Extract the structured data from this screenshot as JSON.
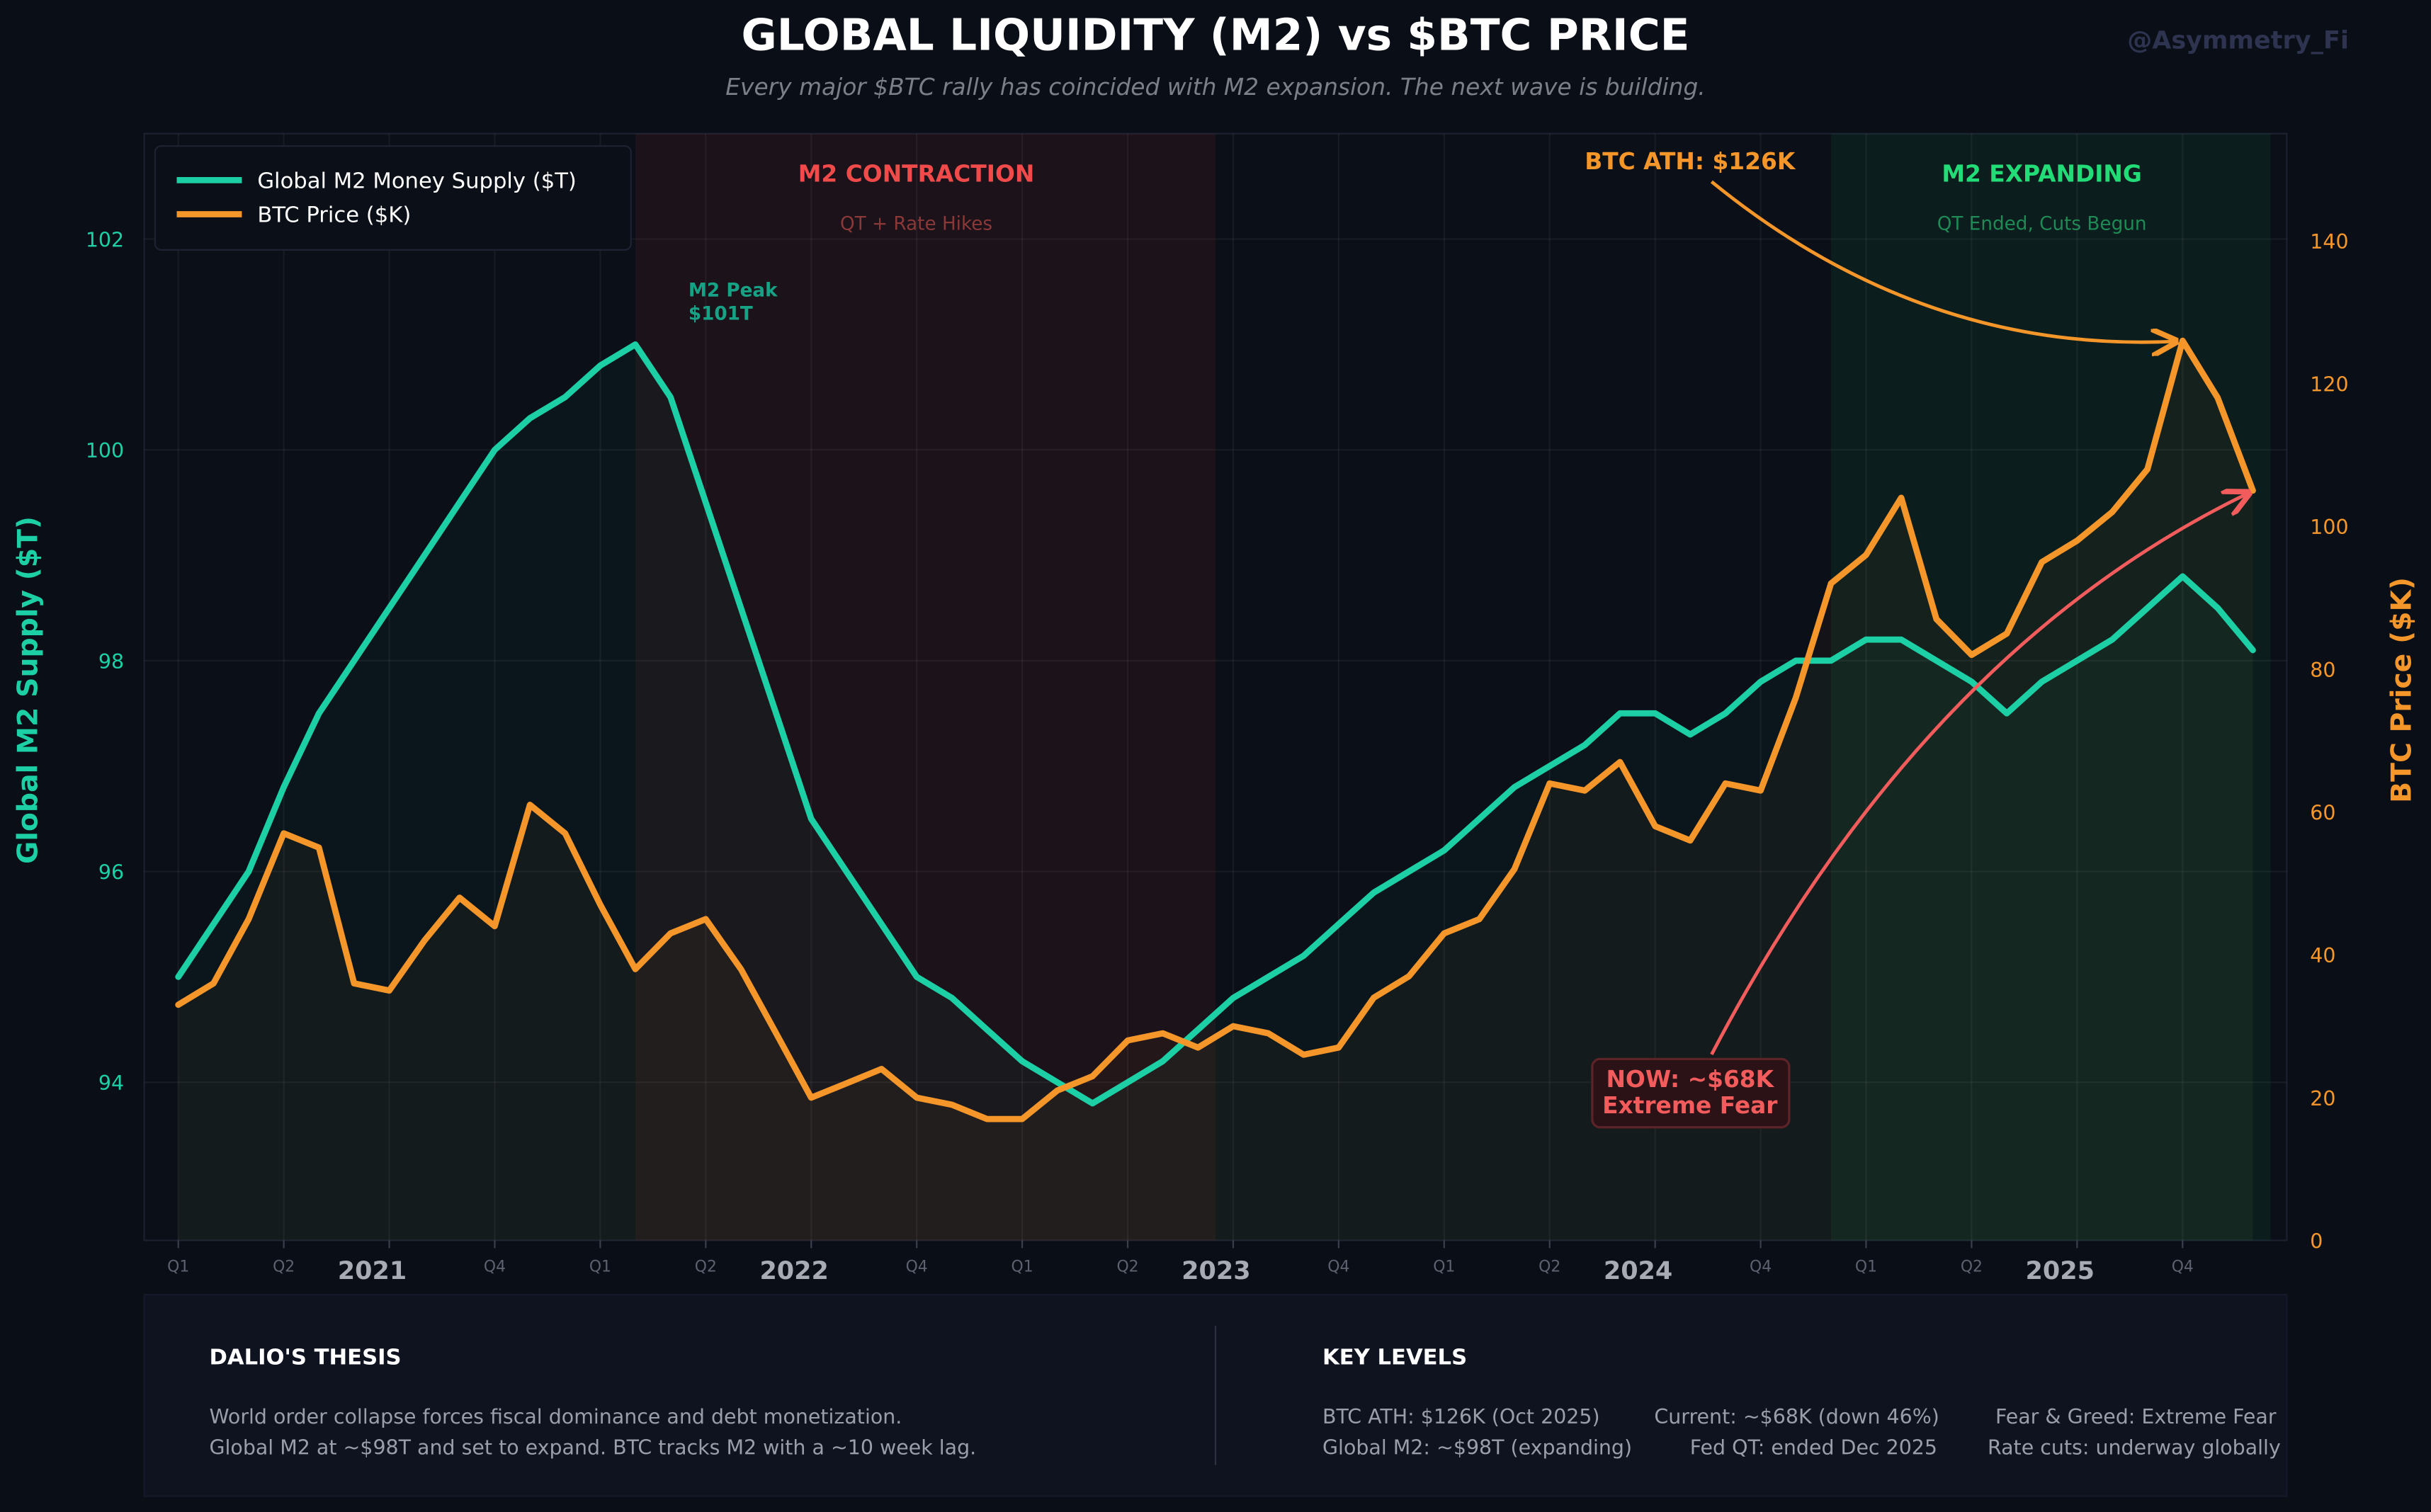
{
  "header": {
    "title": "GLOBAL LIQUIDITY (M2)  vs  $BTC PRICE",
    "subtitle": "Every major $BTC rally has coincided with M2 expansion. The next wave is building.",
    "watermark": "@Asymmetry_Fi"
  },
  "colors": {
    "background": "#0a0e16",
    "m2": "#1ccfa4",
    "btc": "#f5962a",
    "contraction": "#f04a4a",
    "expanding": "#22dd77",
    "now": "#f25c5c"
  },
  "chart_data": {
    "type": "line",
    "title": "GLOBAL LIQUIDITY (M2)  vs  $BTC PRICE",
    "x": [
      "2021-01",
      "2021-02",
      "2021-03",
      "2021-04",
      "2021-05",
      "2021-06",
      "2021-07",
      "2021-08",
      "2021-09",
      "2021-10",
      "2021-11",
      "2021-12",
      "2022-01",
      "2022-02",
      "2022-03",
      "2022-04",
      "2022-05",
      "2022-06",
      "2022-07",
      "2022-08",
      "2022-09",
      "2022-10",
      "2022-11",
      "2022-12",
      "2023-01",
      "2023-02",
      "2023-03",
      "2023-04",
      "2023-05",
      "2023-06",
      "2023-07",
      "2023-08",
      "2023-09",
      "2023-10",
      "2023-11",
      "2023-12",
      "2024-01",
      "2024-02",
      "2024-03",
      "2024-04",
      "2024-05",
      "2024-06",
      "2024-07",
      "2024-08",
      "2024-09",
      "2024-10",
      "2024-11",
      "2024-12",
      "2025-01",
      "2025-02",
      "2025-03",
      "2025-04",
      "2025-05",
      "2025-06",
      "2025-07",
      "2025-08",
      "2025-09",
      "2025-10",
      "2025-11",
      "2025-12"
    ],
    "x_tick_labels": [
      "Q1",
      "Q2",
      "",
      "Q4",
      "Q1",
      "Q2",
      "",
      "Q4",
      "Q1",
      "Q2",
      "",
      "Q4",
      "Q1",
      "Q2",
      "",
      "Q4",
      "Q1",
      "Q2",
      "",
      "Q4"
    ],
    "year_labels": [
      "2021",
      "2022",
      "2023",
      "2024",
      "2025"
    ],
    "series": [
      {
        "name": "Global M2 Money Supply ($T)",
        "axis": "left",
        "color": "#1ccfa4",
        "values": [
          95.0,
          95.5,
          96.0,
          96.8,
          97.5,
          98.0,
          98.5,
          99.0,
          99.5,
          100.0,
          100.3,
          100.5,
          100.8,
          101.0,
          100.5,
          99.5,
          98.5,
          97.5,
          96.5,
          96.0,
          95.5,
          95.0,
          94.8,
          94.5,
          94.2,
          94.0,
          93.8,
          94.0,
          94.2,
          94.5,
          94.8,
          95.0,
          95.2,
          95.5,
          95.8,
          96.0,
          96.2,
          96.5,
          96.8,
          97.0,
          97.2,
          97.5,
          97.5,
          97.3,
          97.5,
          97.8,
          98.0,
          98.0,
          98.2,
          98.2,
          98.0,
          97.8,
          97.5,
          97.8,
          98.0,
          98.2,
          98.5,
          98.8,
          98.5,
          98.1
        ]
      },
      {
        "name": "BTC Price ($K)",
        "axis": "right",
        "color": "#f5962a",
        "values": [
          33,
          36,
          45,
          57,
          55,
          36,
          35,
          42,
          48,
          44,
          61,
          57,
          47,
          38,
          43,
          45,
          38,
          29,
          20,
          22,
          24,
          20,
          19,
          17,
          17,
          21,
          23,
          28,
          29,
          27,
          30,
          29,
          26,
          27,
          34,
          37,
          43,
          45,
          52,
          64,
          63,
          67,
          58,
          56,
          64,
          63,
          76,
          92,
          96,
          104,
          87,
          82,
          85,
          95,
          98,
          102,
          108,
          126,
          118,
          105
        ]
      }
    ],
    "ylabel_left": "Global M2 Supply ($T)",
    "ylabel_right": "BTC Price ($K)",
    "ylim_left": [
      92.5,
      103
    ],
    "ylim_right": [
      0,
      155
    ],
    "yticks_left": [
      94,
      96,
      98,
      100,
      102
    ],
    "yticks_right": [
      0,
      20,
      40,
      60,
      80,
      100,
      120,
      140
    ],
    "grid": true,
    "legend": "top-left",
    "regions": [
      {
        "label": "M2 CONTRACTION",
        "sublabel": "QT + Rate Hikes",
        "start": "2022-02",
        "end": "2023-06",
        "color": "#f04a4a"
      },
      {
        "label": "M2 EXPANDING",
        "sublabel": "QT Ended, Cuts Begun",
        "start": "2024-12",
        "end": "2025-12",
        "color": "#22dd77"
      }
    ],
    "annotations": {
      "m2_peak": [
        "M2 Peak",
        "$101T"
      ],
      "ath": "BTC ATH: $126K",
      "now": [
        "NOW: ~$68K",
        "Extreme Fear"
      ]
    }
  },
  "panels": {
    "thesis": {
      "title": "DALIO'S THESIS",
      "lines": [
        "World order collapse forces fiscal dominance and debt monetization.",
        "Global M2 at ~$98T and set to expand. BTC tracks M2 with a ~10 week lag."
      ]
    },
    "key_levels": {
      "title": "KEY LEVELS",
      "row1": [
        "BTC ATH: $126K (Oct 2025)",
        "Current: ~$68K (down 46%)",
        "Fear & Greed: Extreme Fear"
      ],
      "row2": [
        "Global M2: ~$98T (expanding)",
        "Fed QT: ended Dec 2025",
        "Rate cuts: underway globally"
      ]
    }
  }
}
